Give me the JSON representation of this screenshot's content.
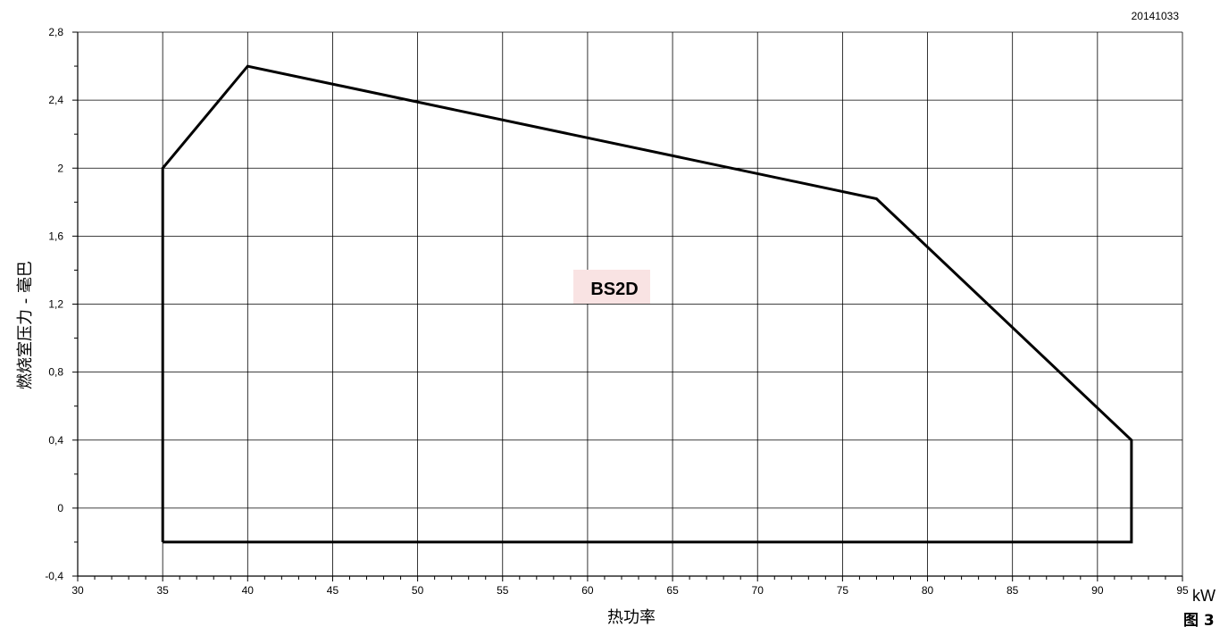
{
  "chart_data": {
    "type": "line",
    "title": "",
    "xlabel": "热功率",
    "xunit": "kW",
    "ylabel": "燃烧室压力 - 毫巴",
    "xlim": [
      30,
      95
    ],
    "ylim": [
      -0.4,
      2.8
    ],
    "xticks": [
      30,
      35,
      40,
      45,
      50,
      55,
      60,
      65,
      70,
      75,
      80,
      85,
      90,
      95
    ],
    "xtick_labels": [
      "30",
      "35",
      "40",
      "45",
      "50",
      "55",
      "60",
      "65",
      "70",
      "75",
      "80",
      "85",
      "90",
      "95"
    ],
    "yticks": [
      -0.4,
      0,
      0.4,
      0.8,
      1.2,
      1.6,
      2,
      2.4,
      2.8
    ],
    "ytick_labels": [
      "-0,4",
      "0",
      "0,4",
      "0,8",
      "1,2",
      "1,6",
      "2",
      "2,4",
      "2,8"
    ],
    "grid": true,
    "series": [
      {
        "name": "BS2D",
        "closed": true,
        "x": [
          35,
          35,
          40,
          77,
          92,
          92,
          35
        ],
        "y": [
          -0.2,
          2.0,
          2.6,
          1.82,
          0.4,
          -0.2,
          -0.2
        ]
      }
    ],
    "series_label_colors": {
      "BS2D": "#f9e3e3"
    },
    "code": "20141033",
    "figure_label": "图 3"
  }
}
